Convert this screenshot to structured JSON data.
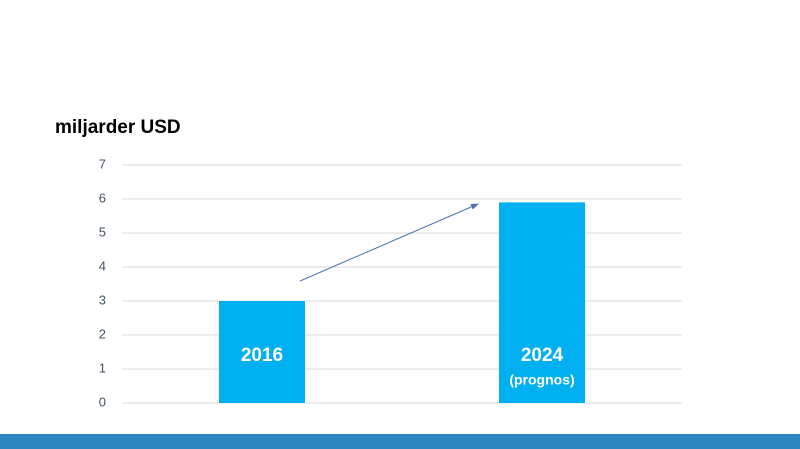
{
  "chart_data": {
    "type": "bar",
    "y_label": "miljarder USD",
    "categories": [
      "2016",
      "2024"
    ],
    "values": [
      3,
      5.9
    ],
    "color": "#00b0f0",
    "annotation": "(prognos)",
    "ylim": [
      0,
      7
    ],
    "yticks": [
      0,
      1,
      2,
      3,
      4,
      5,
      6,
      7
    ],
    "grid": true
  }
}
